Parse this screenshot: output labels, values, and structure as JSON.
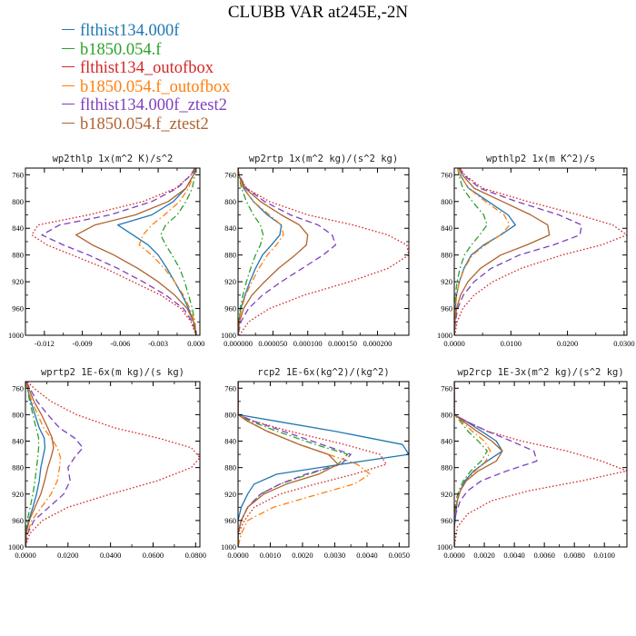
{
  "title": "CLUBB VAR at245E,-2N",
  "legend": [
    {
      "label": "flthist134.000f",
      "color": "#1f77b4",
      "dash": "solid"
    },
    {
      "label": "b1850.054.f",
      "color": "#2ca02c",
      "dash": "dashdot"
    },
    {
      "label": "flthist134_outofbox",
      "color": "#d62728",
      "dash": "dotted"
    },
    {
      "label": "b1850.054.f_outofbox",
      "color": "#ff7f0e",
      "dash": "dashdot"
    },
    {
      "label": "flthist134.000f_ztest2",
      "color": "#7f3fbf",
      "dash": "dashed"
    },
    {
      "label": "b1850.054.f_ztest2",
      "color": "#b0622e",
      "dash": "solid"
    }
  ],
  "chart_data": [
    {
      "type": "line",
      "title": "wp2thlp  1x(m^2 K)/s^2",
      "xlim": [
        -0.0135,
        0.0003
      ],
      "ylim": [
        1000,
        750
      ],
      "xticks": [
        -0.012,
        -0.009,
        -0.006,
        -0.003,
        0.0
      ],
      "xticklabels": [
        "-0.012",
        "-0.009",
        "-0.006",
        "-0.003",
        "0.000"
      ],
      "yticks": [
        760,
        800,
        840,
        880,
        920,
        960,
        1000
      ],
      "yticklabels": [
        "760",
        "800",
        "840",
        "880",
        "920",
        "960",
        "1000"
      ],
      "levels": [
        750,
        760,
        780,
        800,
        820,
        835,
        850,
        865,
        880,
        900,
        920,
        940,
        960,
        980,
        1000
      ],
      "series": [
        {
          "name": "flthist134.000f",
          "values": [
            -0.0001,
            -0.0002,
            -0.0008,
            -0.0018,
            -0.0035,
            -0.0062,
            -0.005,
            -0.0038,
            -0.003,
            -0.0023,
            -0.0017,
            -0.0011,
            -0.0006,
            -0.0002,
            0.0
          ]
        },
        {
          "name": "b1850.054.f",
          "values": [
            -0.0001,
            -0.0001,
            -0.0003,
            -0.0008,
            -0.0015,
            -0.0024,
            -0.0028,
            -0.0024,
            -0.0019,
            -0.0013,
            -0.0009,
            -0.0006,
            -0.0003,
            -0.0001,
            0.0
          ]
        },
        {
          "name": "flthist134_outofbox",
          "values": [
            -0.0001,
            -0.0004,
            -0.0016,
            -0.0042,
            -0.0085,
            -0.0125,
            -0.013,
            -0.0118,
            -0.0098,
            -0.0072,
            -0.005,
            -0.0028,
            -0.0012,
            -0.0004,
            0.0
          ]
        },
        {
          "name": "b1850.054.f_outofbox",
          "values": [
            -0.0001,
            -0.0002,
            -0.0006,
            -0.0013,
            -0.0025,
            -0.0035,
            -0.0042,
            -0.0045,
            -0.0035,
            -0.0025,
            -0.0017,
            -0.001,
            -0.0005,
            -0.0001,
            0.0
          ]
        },
        {
          "name": "flthist134.000f_ztest2",
          "values": [
            -0.0001,
            -0.0004,
            -0.0015,
            -0.0035,
            -0.0068,
            -0.0108,
            -0.0122,
            -0.0105,
            -0.0085,
            -0.0062,
            -0.0042,
            -0.0024,
            -0.001,
            -0.0003,
            0.0
          ]
        },
        {
          "name": "b1850.054.f_ztest2",
          "values": [
            -0.0001,
            -0.0002,
            -0.0008,
            -0.0022,
            -0.0048,
            -0.008,
            -0.0095,
            -0.0082,
            -0.0065,
            -0.0046,
            -0.003,
            -0.0017,
            -0.0007,
            -0.0002,
            0.0
          ]
        }
      ]
    },
    {
      "type": "line",
      "title": "wp2rtp  1x(m^2 kg)/(s^2 kg)",
      "xlim": [
        0.0,
        0.000245
      ],
      "ylim": [
        1000,
        750
      ],
      "xticks": [
        0.0,
        5e-05,
        0.0001,
        0.00015,
        0.0002
      ],
      "xticklabels": [
        "0.000000",
        "0.000050",
        "0.000100",
        "0.000150",
        "0.000200"
      ],
      "yticks": [
        760,
        800,
        840,
        880,
        920,
        960,
        1000
      ],
      "yticklabels": [
        "760",
        "800",
        "840",
        "880",
        "920",
        "960",
        "1000"
      ],
      "levels": [
        750,
        760,
        780,
        800,
        820,
        835,
        850,
        865,
        880,
        900,
        920,
        940,
        960,
        980,
        1000
      ],
      "series": [
        {
          "name": "flthist134.000f",
          "values": [
            0.0,
            1e-06,
            8e-06,
            2.2e-05,
            4.2e-05,
            6.2e-05,
            6e-05,
            4.8e-05,
            3.5e-05,
            2.5e-05,
            1.7e-05,
            1e-05,
            4e-06,
            1e-06,
            0.0
          ]
        },
        {
          "name": "b1850.054.f",
          "values": [
            0.0,
            1e-06,
            5e-06,
            1.2e-05,
            2.2e-05,
            3.2e-05,
            3.6e-05,
            3.2e-05,
            2.5e-05,
            1.8e-05,
            1.2e-05,
            7e-06,
            3e-06,
            1e-06,
            0.0
          ]
        },
        {
          "name": "flthist134_outofbox",
          "values": [
            0.0,
            1e-06,
            1.2e-05,
            4.5e-05,
            0.0001,
            0.000165,
            0.000215,
            0.000242,
            0.000245,
            0.000215,
            0.00016,
            9.5e-05,
            4.5e-05,
            1.5e-05,
            2e-06
          ]
        },
        {
          "name": "b1850.054.f_outofbox",
          "values": [
            0.0,
            1e-06,
            7e-06,
            2.2e-05,
            4.5e-05,
            6.2e-05,
            6.5e-05,
            5.5e-05,
            4.2e-05,
            3e-05,
            2e-05,
            1.1e-05,
            5e-06,
            1e-06,
            0.0
          ]
        },
        {
          "name": "flthist134.000f_ztest2",
          "values": [
            0.0,
            1e-06,
            1.2e-05,
            3.8e-05,
            7.5e-05,
            0.000115,
            0.000135,
            0.00014,
            0.000122,
            9.2e-05,
            6.2e-05,
            3.5e-05,
            1.5e-05,
            4e-06,
            0.0
          ]
        },
        {
          "name": "b1850.054.f_ztest2",
          "values": [
            0.0,
            1e-06,
            1e-05,
            3.2e-05,
            6.2e-05,
            8.8e-05,
            0.0001,
            9.8e-05,
            8.2e-05,
            5.8e-05,
            3.8e-05,
            2e-05,
            8e-06,
            2e-06,
            0.0
          ]
        }
      ]
    },
    {
      "type": "line",
      "title": "wpthlp2  1x(m K^2)/s",
      "xlim": [
        0.0,
        0.0305
      ],
      "ylim": [
        1000,
        750
      ],
      "xticks": [
        0.0,
        0.01,
        0.02,
        0.03
      ],
      "xticklabels": [
        "0.0000",
        "0.0100",
        "0.0200",
        "0.0300"
      ],
      "yticks": [
        760,
        800,
        840,
        880,
        920,
        960,
        1000
      ],
      "yticklabels": [
        "760",
        "800",
        "840",
        "880",
        "920",
        "960",
        "1000"
      ],
      "levels": [
        750,
        760,
        780,
        800,
        820,
        835,
        850,
        865,
        880,
        900,
        920,
        940,
        960,
        980,
        1000
      ],
      "series": [
        {
          "name": "flthist134.000f",
          "values": [
            0.0006,
            0.001,
            0.0025,
            0.006,
            0.0095,
            0.0108,
            0.0082,
            0.0052,
            0.003,
            0.0017,
            0.0009,
            0.0004,
            0.0002,
            0.0001,
            0.0
          ]
        },
        {
          "name": "b1850.054.f",
          "values": [
            0.0006,
            0.0008,
            0.0015,
            0.0032,
            0.0052,
            0.0058,
            0.0045,
            0.003,
            0.0018,
            0.001,
            0.0005,
            0.0002,
            0.0001,
            0.0,
            0.0
          ]
        },
        {
          "name": "flthist134_outofbox",
          "values": [
            0.001,
            0.0018,
            0.005,
            0.013,
            0.022,
            0.028,
            0.0305,
            0.026,
            0.019,
            0.0118,
            0.0068,
            0.0035,
            0.0015,
            0.0005,
            0.0001
          ]
        },
        {
          "name": "b1850.054.f_outofbox",
          "values": [
            0.0006,
            0.001,
            0.0025,
            0.0055,
            0.0088,
            0.0098,
            0.0082,
            0.0055,
            0.0032,
            0.0018,
            0.0009,
            0.0004,
            0.0002,
            0.0,
            0.0
          ]
        },
        {
          "name": "flthist134.000f_ztest2",
          "values": [
            0.001,
            0.0016,
            0.0045,
            0.011,
            0.0185,
            0.0225,
            0.0222,
            0.0175,
            0.0115,
            0.0065,
            0.0035,
            0.0016,
            0.0006,
            0.0002,
            0.0
          ]
        },
        {
          "name": "b1850.054.f_ztest2",
          "values": [
            0.0008,
            0.0014,
            0.0035,
            0.0085,
            0.0135,
            0.0165,
            0.0168,
            0.0128,
            0.0082,
            0.0046,
            0.0024,
            0.0011,
            0.0004,
            0.0001,
            0.0
          ]
        }
      ]
    },
    {
      "type": "line",
      "title": "wprtp2  1E-6x(m kg)/(s kg)",
      "xlim": [
        0.0,
        0.082
      ],
      "ylim": [
        1000,
        750
      ],
      "xticks": [
        0.0,
        0.02,
        0.04,
        0.06,
        0.08
      ],
      "xticklabels": [
        "0.0000",
        "0.0200",
        "0.0400",
        "0.0600",
        "0.0800"
      ],
      "yticks": [
        760,
        800,
        840,
        880,
        920,
        960,
        1000
      ],
      "yticklabels": [
        "760",
        "800",
        "840",
        "880",
        "920",
        "960",
        "1000"
      ],
      "levels": [
        750,
        760,
        780,
        800,
        820,
        835,
        850,
        865,
        880,
        900,
        920,
        940,
        960,
        980,
        1000
      ],
      "series": [
        {
          "name": "flthist134.000f",
          "values": [
            0.0,
            0.001,
            0.0025,
            0.0045,
            0.0065,
            0.0088,
            0.0092,
            0.0082,
            0.0072,
            0.0065,
            0.0052,
            0.0035,
            0.0015,
            0.0003,
            0.0
          ]
        },
        {
          "name": "b1850.054.f",
          "values": [
            0.0,
            0.0008,
            0.002,
            0.0035,
            0.005,
            0.0062,
            0.0062,
            0.0058,
            0.0052,
            0.0045,
            0.0035,
            0.0022,
            0.0008,
            0.0002,
            0.0
          ]
        },
        {
          "name": "flthist134_outofbox",
          "values": [
            0.001,
            0.004,
            0.012,
            0.024,
            0.042,
            0.062,
            0.078,
            0.082,
            0.078,
            0.062,
            0.04,
            0.02,
            0.008,
            0.002,
            0.0
          ]
        },
        {
          "name": "b1850.054.f_outofbox",
          "values": [
            0.0,
            0.001,
            0.003,
            0.0058,
            0.0085,
            0.012,
            0.015,
            0.0165,
            0.016,
            0.015,
            0.012,
            0.0075,
            0.003,
            0.0008,
            0.0
          ]
        },
        {
          "name": "flthist134.000f_ztest2",
          "values": [
            0.0005,
            0.002,
            0.0055,
            0.0105,
            0.016,
            0.023,
            0.027,
            0.023,
            0.02,
            0.021,
            0.018,
            0.011,
            0.004,
            0.001,
            0.0
          ]
        },
        {
          "name": "b1850.054.f_ztest2",
          "values": [
            0.0003,
            0.0015,
            0.004,
            0.0075,
            0.0105,
            0.0125,
            0.0132,
            0.012,
            0.0105,
            0.009,
            0.0072,
            0.0045,
            0.0018,
            0.0004,
            0.0
          ]
        }
      ]
    },
    {
      "type": "line",
      "title": "rcp2  1E-6x(kg^2)/(kg^2)",
      "xlim": [
        0.0,
        0.0053
      ],
      "ylim": [
        1000,
        750
      ],
      "xticks": [
        0.0,
        0.001,
        0.002,
        0.003,
        0.004,
        0.005
      ],
      "xticklabels": [
        "0.0000",
        "0.0010",
        "0.0020",
        "0.0030",
        "0.0040",
        "0.0050"
      ],
      "yticks": [
        760,
        800,
        840,
        880,
        920,
        960,
        1000
      ],
      "yticklabels": [
        "760",
        "800",
        "840",
        "880",
        "920",
        "960",
        "1000"
      ],
      "levels": [
        750,
        800,
        810,
        825,
        845,
        860,
        875,
        890,
        905,
        920,
        940,
        960,
        980,
        1000
      ],
      "series": [
        {
          "name": "flthist134.000f",
          "values": [
            0.0,
            0.0,
            0.0012,
            0.003,
            0.0051,
            0.0053,
            0.0032,
            0.0012,
            0.0005,
            0.0003,
            0.0001,
            0.0,
            0.0,
            0.0
          ]
        },
        {
          "name": "b1850.054.f",
          "values": [
            0.0,
            0.0,
            0.0004,
            0.0012,
            0.0024,
            0.0034,
            0.0031,
            0.0022,
            0.0013,
            0.0007,
            0.0003,
            0.0001,
            0.0,
            0.0
          ]
        },
        {
          "name": "flthist134_outofbox",
          "values": [
            0.0,
            0.0,
            0.0005,
            0.0016,
            0.0033,
            0.0044,
            0.0046,
            0.0036,
            0.0024,
            0.0013,
            0.0005,
            0.0002,
            0.0,
            0.0
          ]
        },
        {
          "name": "b1850.054.f_outofbox",
          "values": [
            0.0,
            0.0,
            0.0003,
            0.0009,
            0.0019,
            0.0028,
            0.0037,
            0.0041,
            0.0036,
            0.0025,
            0.0011,
            0.0003,
            0.0001,
            0.0
          ]
        },
        {
          "name": "flthist134.000f_ztest2",
          "values": [
            0.0,
            0.0,
            0.0005,
            0.0014,
            0.0026,
            0.0035,
            0.0032,
            0.0021,
            0.0013,
            0.0007,
            0.0003,
            0.0001,
            0.0,
            0.0
          ]
        },
        {
          "name": "b1850.054.f_ztest2",
          "values": [
            0.0,
            0.0,
            0.0003,
            0.0009,
            0.0019,
            0.0028,
            0.0031,
            0.0025,
            0.0015,
            0.0008,
            0.0003,
            0.0001,
            0.0,
            0.0
          ]
        }
      ]
    },
    {
      "type": "line",
      "title": "wp2rcp  1E-3x(m^2 kg)/(s^2 kg)",
      "xlim": [
        0.0,
        0.0115
      ],
      "ylim": [
        1000,
        750
      ],
      "xticks": [
        0.0,
        0.002,
        0.004,
        0.006,
        0.008,
        0.01
      ],
      "xticklabels": [
        "0.0000",
        "0.0020",
        "0.0040",
        "0.0060",
        "0.0080",
        "0.0100"
      ],
      "yticks": [
        760,
        800,
        840,
        880,
        920,
        960,
        1000
      ],
      "yticklabels": [
        "760",
        "800",
        "840",
        "880",
        "920",
        "960",
        "1000"
      ],
      "levels": [
        750,
        800,
        810,
        825,
        840,
        855,
        870,
        885,
        900,
        915,
        930,
        950,
        970,
        1000
      ],
      "series": [
        {
          "name": "flthist134.000f",
          "values": [
            0.0,
            0.0,
            0.0008,
            0.0018,
            0.0028,
            0.0032,
            0.0022,
            0.0013,
            0.0007,
            0.0004,
            0.0002,
            0.0001,
            0.0,
            0.0
          ]
        },
        {
          "name": "b1850.054.f",
          "values": [
            0.0,
            0.0,
            0.0004,
            0.0009,
            0.0016,
            0.0022,
            0.0018,
            0.0011,
            0.0006,
            0.0003,
            0.0001,
            0.0,
            0.0,
            0.0
          ]
        },
        {
          "name": "flthist134_outofbox",
          "values": [
            0.0,
            0.0,
            0.0008,
            0.0022,
            0.0045,
            0.0075,
            0.0098,
            0.0115,
            0.0085,
            0.005,
            0.0025,
            0.0009,
            0.0002,
            0.0
          ]
        },
        {
          "name": "b1850.054.f_outofbox",
          "values": [
            0.0,
            0.0,
            0.0005,
            0.0012,
            0.002,
            0.0024,
            0.0021,
            0.0014,
            0.0008,
            0.0004,
            0.0002,
            0.0,
            0.0,
            0.0
          ]
        },
        {
          "name": "flthist134.000f_ztest2",
          "values": [
            0.0,
            0.0,
            0.0008,
            0.0022,
            0.0038,
            0.0053,
            0.0055,
            0.0035,
            0.0018,
            0.0009,
            0.0004,
            0.0001,
            0.0,
            0.0
          ]
        },
        {
          "name": "b1850.054.f_ztest2",
          "values": [
            0.0,
            0.0,
            0.0006,
            0.0015,
            0.0025,
            0.0032,
            0.0028,
            0.0016,
            0.0008,
            0.0004,
            0.0002,
            0.0,
            0.0,
            0.0
          ]
        }
      ]
    }
  ]
}
